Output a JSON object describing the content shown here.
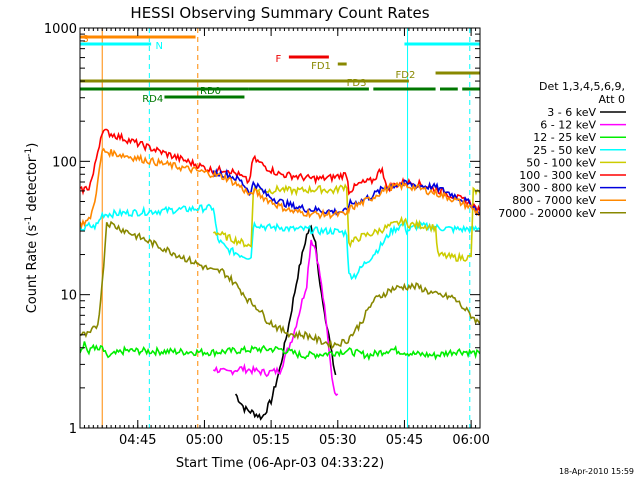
{
  "chart_data": {
    "type": "line",
    "title": "HESSI Observing Summary Count Rates",
    "xlabel": "Start Time (06-Apr-03 04:33:22)",
    "ylabel": "Count Rate (s⁻¹ detector⁻¹)",
    "ylabel_parts": {
      "main": "Count Rate (s",
      "sup1": "-1",
      "mid": " detector",
      "sup2": "-1",
      "end": ")"
    },
    "footer_timestamp": "18-Apr-2010 15:59",
    "y_scale": "log",
    "ylim": [
      1,
      1000
    ],
    "xlim_minutes": [
      0,
      90
    ],
    "x_ticks": [
      {
        "min": 13,
        "label": "04:45"
      },
      {
        "min": 28,
        "label": "05:00"
      },
      {
        "min": 43,
        "label": "05:15"
      },
      {
        "min": 58,
        "label": "05:30"
      },
      {
        "min": 73,
        "label": "05:45"
      },
      {
        "min": 88,
        "label": "06:00"
      }
    ],
    "y_ticks": [
      {
        "v": 1,
        "label": "1"
      },
      {
        "v": 10,
        "label": "10"
      },
      {
        "v": 100,
        "label": "100"
      },
      {
        "v": 1000,
        "label": "1000"
      }
    ],
    "legend": {
      "title_line1": "Det 1,3,4,5,6,9,",
      "title_line2": "Att 0",
      "entries": [
        {
          "label": "3 - 6 keV",
          "color": "#000000"
        },
        {
          "label": "6 - 12 keV",
          "color": "#ff00ff"
        },
        {
          "label": "12 - 25 keV",
          "color": "#00ee00"
        },
        {
          "label": "25 - 50 keV",
          "color": "#00ffff"
        },
        {
          "label": "50 - 100 keV",
          "color": "#cccc00"
        },
        {
          "label": "100 - 300 keV",
          "color": "#ff0000"
        },
        {
          "label": "300 - 800 keV",
          "color": "#0000dd"
        },
        {
          "label": "800 - 7000 keV",
          "color": "#ff8800"
        },
        {
          "label": "7000 - 20000 keV",
          "color": "#888800"
        }
      ]
    },
    "flag_bars": [
      {
        "label": "S",
        "color": "#ff8800",
        "x0": 0,
        "x1": 26,
        "y": 37,
        "label_at": 0.5
      },
      {
        "label": "N",
        "color": "#00ffff",
        "x0": 0,
        "x1": 16,
        "y": 44,
        "label_at": 17
      },
      {
        "label": "N",
        "color": "#00ffff",
        "x0": 73,
        "x1": 90,
        "y": 44,
        "label_at": null
      },
      {
        "label": "F",
        "color": "#ee0000",
        "x0": 47,
        "x1": 56,
        "y": 57,
        "label_at": 44
      },
      {
        "label": "FD1",
        "color": "#888800",
        "x0": 58,
        "x1": 60,
        "y": 64,
        "label_at": 52
      },
      {
        "label": "FD2",
        "color": "#888800",
        "x0": 80,
        "x1": 90,
        "y": 73,
        "label_at": 71
      },
      {
        "label": "FD3",
        "color": "#888800",
        "x0": 0,
        "x1": 74,
        "y": 81,
        "label_at": 60
      },
      {
        "label": "RD0",
        "color": "#007700",
        "x0": 0,
        "x1": 38,
        "y": 89,
        "label_at": 27
      },
      {
        "label": "RD0",
        "color": "#007700",
        "x0": 38,
        "x1": 65,
        "y": 89,
        "label_at": null
      },
      {
        "label": "RD0",
        "color": "#007700",
        "x0": 66,
        "x1": 80,
        "y": 89,
        "label_at": null
      },
      {
        "label": "RD0",
        "color": "#007700",
        "x0": 81,
        "x1": 85,
        "y": 89,
        "label_at": null
      },
      {
        "label": "RD0",
        "color": "#007700",
        "x0": 86,
        "x1": 90,
        "y": 89,
        "label_at": null
      },
      {
        "label": "RD4",
        "color": "#007700",
        "x0": 19,
        "x1": 37,
        "y": 97,
        "label_at": 14
      }
    ],
    "vertical_markers": [
      {
        "min": 5,
        "color": "#ff8800",
        "style": "solid"
      },
      {
        "min": 15.6,
        "color": "#00ffff",
        "style": "dashed"
      },
      {
        "min": 26.5,
        "color": "#ff8800",
        "style": "dashed"
      },
      {
        "min": 73.7,
        "color": "#00ffff",
        "style": "solid"
      },
      {
        "min": 87.7,
        "color": "#00ffff",
        "style": "dashed"
      }
    ],
    "series": [
      {
        "name": "3 - 6 keV",
        "color": "#000000",
        "x": [
          35,
          37,
          39,
          41,
          43,
          45,
          47,
          49,
          51,
          52,
          53,
          54,
          55,
          56,
          57,
          57.5
        ],
        "y": [
          1.8,
          1.4,
          1.3,
          1.2,
          1.6,
          2.8,
          6,
          14,
          28,
          32,
          25,
          12,
          7,
          5,
          3,
          2.5
        ]
      },
      {
        "name": "6 - 12 keV",
        "color": "#ff00ff",
        "x": [
          30,
          33,
          36,
          39,
          42,
          45,
          48,
          51,
          52,
          53,
          54,
          55,
          56,
          57,
          58
        ],
        "y": [
          2.8,
          2.6,
          2.8,
          2.7,
          2.6,
          2.7,
          5,
          12,
          26,
          22,
          14,
          8,
          4,
          2,
          1.8
        ]
      },
      {
        "name": "12 - 25 keV",
        "color": "#00ee00",
        "x": [
          0,
          1,
          2,
          3,
          4,
          5,
          6,
          10,
          30,
          35,
          40,
          45,
          50,
          55,
          60,
          65,
          70,
          75,
          80,
          85,
          90
        ],
        "y": [
          3.8,
          4.4,
          3.6,
          4.2,
          3.8,
          4.0,
          3.4,
          3.8,
          3.7,
          3.8,
          3.9,
          3.9,
          3.5,
          3.6,
          3.8,
          3.5,
          3.9,
          3.6,
          3.5,
          3.8,
          3.6
        ]
      },
      {
        "name": "25 - 50 keV",
        "color": "#00ffff",
        "x": [
          0,
          1,
          2,
          3,
          4,
          5,
          30,
          30.5,
          31,
          33,
          36,
          38.5,
          39,
          39.5,
          42,
          45,
          48,
          51,
          54,
          57,
          60,
          60.5,
          62,
          64,
          66,
          68,
          70,
          73,
          73.5,
          76,
          80,
          84,
          88,
          90
        ],
        "y": [
          32,
          31,
          33,
          32,
          34,
          40,
          45,
          34,
          26,
          22,
          20,
          19,
          33,
          34,
          32,
          32,
          31,
          31,
          30,
          30,
          29,
          14,
          14,
          17,
          20,
          24,
          30,
          34,
          30,
          33,
          32,
          31,
          31,
          31
        ]
      },
      {
        "name": "50 - 100 keV",
        "color": "#cccc00",
        "x": [
          30,
          33,
          36,
          38.5,
          39,
          42,
          45,
          48,
          51,
          54,
          57,
          60,
          60.5,
          63,
          66,
          70,
          73,
          73.5,
          77,
          80,
          80.5,
          84,
          88,
          88.5,
          90
        ],
        "y": [
          30,
          27,
          25,
          23,
          62,
          60,
          62,
          60,
          61,
          62,
          60,
          66,
          24,
          27,
          29,
          33,
          36,
          34,
          33,
          32,
          20,
          19,
          19,
          60,
          58
        ]
      },
      {
        "name": "100 - 300 keV",
        "color": "#ff0000",
        "x": [
          0,
          1,
          2,
          3,
          4,
          5,
          30,
          33,
          36,
          38,
          39,
          42,
          45,
          48,
          51,
          54,
          57,
          60,
          60.5,
          63,
          66,
          68,
          69,
          70,
          73,
          76,
          80,
          84,
          88,
          90
        ],
        "y": [
          60,
          62,
          64,
          80,
          120,
          170,
          85,
          88,
          78,
          70,
          105,
          90,
          80,
          78,
          75,
          74,
          76,
          80,
          60,
          68,
          72,
          90,
          62,
          65,
          70,
          68,
          62,
          55,
          48,
          42
        ]
      },
      {
        "name": "300 - 800 keV",
        "color": "#0000dd",
        "x": [
          30,
          33,
          36,
          38.5,
          39,
          42,
          45,
          48,
          51,
          54,
          57,
          60,
          60.5,
          63,
          66,
          68,
          70,
          73,
          76,
          80,
          84,
          88,
          90
        ],
        "y": [
          82,
          80,
          72,
          58,
          70,
          56,
          50,
          46,
          44,
          43,
          42,
          42,
          48,
          50,
          56,
          62,
          66,
          68,
          66,
          64,
          56,
          48,
          40
        ]
      },
      {
        "name": "800 - 7000 keV",
        "color": "#ff8800",
        "x": [
          0,
          1,
          2,
          3,
          4,
          5,
          30,
          33,
          36,
          38.5,
          39,
          42,
          45,
          48,
          51,
          54,
          57,
          60,
          60.5,
          63,
          66,
          68,
          70,
          73,
          76,
          80,
          84,
          88,
          90
        ],
        "y": [
          34,
          35,
          36,
          45,
          70,
          120,
          80,
          75,
          65,
          55,
          60,
          52,
          46,
          42,
          41,
          40,
          40,
          40,
          44,
          48,
          54,
          60,
          64,
          66,
          63,
          58,
          52,
          45,
          40
        ]
      },
      {
        "name": "7000 - 20000 keV",
        "color": "#888800",
        "x": [
          0,
          2,
          4,
          5,
          6,
          30,
          32,
          34,
          36,
          38,
          40,
          42,
          45,
          48,
          51,
          54,
          57,
          60,
          63,
          66,
          70,
          73,
          76,
          80,
          84,
          88,
          90
        ],
        "y": [
          5,
          5,
          6,
          12,
          35,
          15,
          15,
          13,
          11,
          9,
          8,
          6.5,
          5.5,
          5,
          5,
          4.5,
          4.2,
          4.5,
          6,
          9,
          11,
          11.5,
          11.5,
          10,
          9.5,
          7,
          6
        ]
      }
    ]
  }
}
